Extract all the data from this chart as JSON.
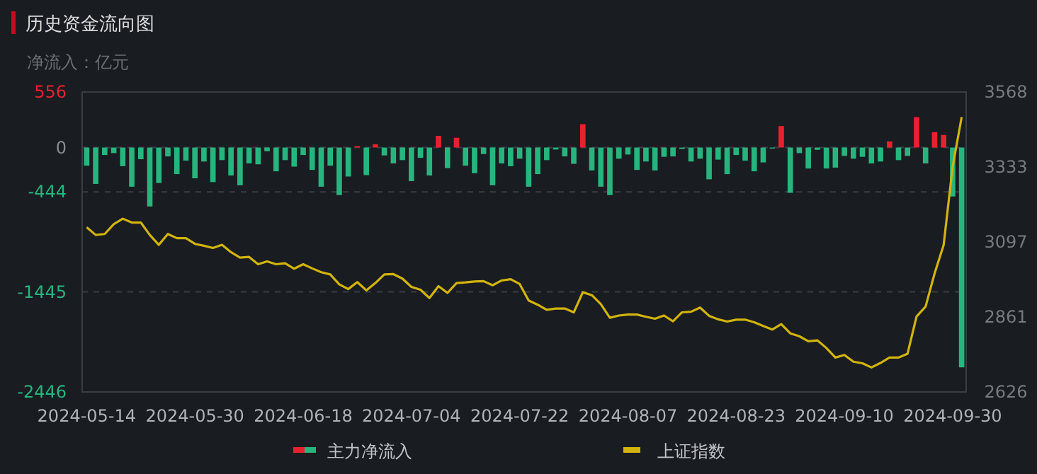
{
  "chart_data": {
    "type": "bar",
    "title": "历史资金流向图",
    "ylabel": "净流入：亿元",
    "categories": [
      "2024-05-14",
      null,
      null,
      null,
      null,
      null,
      null,
      null,
      null,
      null,
      null,
      null,
      "2024-05-30",
      null,
      null,
      null,
      null,
      null,
      null,
      null,
      null,
      null,
      null,
      null,
      "2024-06-18",
      null,
      null,
      null,
      null,
      null,
      null,
      null,
      null,
      null,
      null,
      null,
      "2024-07-04",
      null,
      null,
      null,
      null,
      null,
      null,
      null,
      null,
      null,
      null,
      null,
      "2024-07-22",
      null,
      null,
      null,
      null,
      null,
      null,
      null,
      null,
      null,
      null,
      null,
      "2024-08-07",
      null,
      null,
      null,
      null,
      null,
      null,
      null,
      null,
      null,
      null,
      null,
      "2024-08-23",
      null,
      null,
      null,
      null,
      null,
      null,
      null,
      null,
      null,
      null,
      null,
      "2024-09-10",
      null,
      null,
      null,
      null,
      null,
      null,
      null,
      null,
      null,
      null,
      null,
      "2024-09-30",
      null
    ],
    "series": [
      {
        "name": "主力净流入",
        "values": [
          -182,
          -364,
          -75,
          -56,
          -187,
          -392,
          -117,
          -590,
          -355,
          -89,
          -266,
          -131,
          -308,
          -140,
          -346,
          -126,
          -280,
          -378,
          -159,
          -168,
          -37,
          -238,
          -126,
          -191,
          -75,
          -224,
          -392,
          -182,
          -476,
          -290,
          14,
          -276,
          33,
          -79,
          -159,
          -126,
          -336,
          -103,
          -280,
          117,
          -206,
          98,
          -182,
          -257,
          -65,
          -378,
          -159,
          -187,
          -112,
          -392,
          -266,
          -126,
          -20,
          -89,
          -163,
          234,
          -229,
          -392,
          -476,
          -112,
          -70,
          -224,
          -140,
          -229,
          -93,
          -89,
          -14,
          -140,
          -112,
          -318,
          -121,
          -266,
          -75,
          -131,
          -238,
          -149,
          -10,
          215,
          -453,
          -56,
          -210,
          -23,
          -210,
          -201,
          -84,
          -112,
          -93,
          -159,
          -140,
          61,
          -126,
          -84,
          304,
          -159,
          154,
          126,
          -490,
          -2200
        ],
        "colors": [
          "#27b57f",
          "#27b57f",
          "#27b57f",
          "#27b57f",
          "#27b57f",
          "#27b57f",
          "#27b57f",
          "#27b57f",
          "#27b57f",
          "#27b57f",
          "#27b57f",
          "#27b57f",
          "#27b57f",
          "#27b57f",
          "#27b57f",
          "#27b57f",
          "#27b57f",
          "#27b57f",
          "#27b57f",
          "#27b57f",
          "#27b57f",
          "#27b57f",
          "#27b57f",
          "#27b57f",
          "#27b57f",
          "#27b57f",
          "#27b57f",
          "#27b57f",
          "#27b57f",
          "#27b57f",
          "#e8212f",
          "#27b57f",
          "#e8212f",
          "#27b57f",
          "#27b57f",
          "#27b57f",
          "#27b57f",
          "#27b57f",
          "#27b57f",
          "#e8212f",
          "#27b57f",
          "#e8212f",
          "#27b57f",
          "#27b57f",
          "#27b57f",
          "#27b57f",
          "#27b57f",
          "#27b57f",
          "#27b57f",
          "#27b57f",
          "#27b57f",
          "#27b57f",
          "#27b57f",
          "#27b57f",
          "#27b57f",
          "#e8212f",
          "#27b57f",
          "#27b57f",
          "#27b57f",
          "#27b57f",
          "#27b57f",
          "#27b57f",
          "#27b57f",
          "#27b57f",
          "#27b57f",
          "#27b57f",
          "#27b57f",
          "#27b57f",
          "#27b57f",
          "#27b57f",
          "#27b57f",
          "#27b57f",
          "#27b57f",
          "#27b57f",
          "#27b57f",
          "#27b57f",
          "#27b57f",
          "#e8212f",
          "#27b57f",
          "#27b57f",
          "#27b57f",
          "#27b57f",
          "#27b57f",
          "#27b57f",
          "#27b57f",
          "#27b57f",
          "#27b57f",
          "#27b57f",
          "#27b57f",
          "#e8212f",
          "#27b57f",
          "#27b57f",
          "#e8212f",
          "#27b57f",
          "#e8212f",
          "#e8212f",
          "#27b57f",
          "#27b57f"
        ]
      },
      {
        "name": "上证指数",
        "type": "line",
        "axis": "y2",
        "color": "#d2b40c",
        "values": [
          3143,
          3119,
          3122,
          3153,
          3170,
          3158,
          3158,
          3119,
          3088,
          3122,
          3109,
          3109,
          3091,
          3085,
          3078,
          3088,
          3065,
          3048,
          3050,
          3027,
          3036,
          3027,
          3030,
          3013,
          3027,
          3014,
          3002,
          2995,
          2964,
          2949,
          2971,
          2945,
          2968,
          2995,
          2996,
          2982,
          2956,
          2947,
          2921,
          2958,
          2937,
          2968,
          2970,
          2973,
          2974,
          2961,
          2976,
          2980,
          2965,
          2913,
          2900,
          2884,
          2888,
          2888,
          2876,
          2939,
          2930,
          2902,
          2859,
          2866,
          2869,
          2869,
          2862,
          2856,
          2866,
          2848,
          2876,
          2878,
          2891,
          2865,
          2854,
          2847,
          2853,
          2853,
          2845,
          2833,
          2822,
          2839,
          2810,
          2801,
          2785,
          2788,
          2764,
          2734,
          2742,
          2721,
          2716,
          2703,
          2717,
          2734,
          2734,
          2746,
          2863,
          2894,
          2998,
          3087,
          3333,
          3489
        ]
      }
    ],
    "ylim": [
      -2446,
      556
    ],
    "yticks": [
      556,
      0,
      -444,
      -1445,
      -2446
    ],
    "y2lim": [
      2626,
      3568
    ],
    "y2ticks": [
      3568,
      3333,
      3097,
      2861,
      2626
    ],
    "grid": "y",
    "legend": "bottom"
  }
}
